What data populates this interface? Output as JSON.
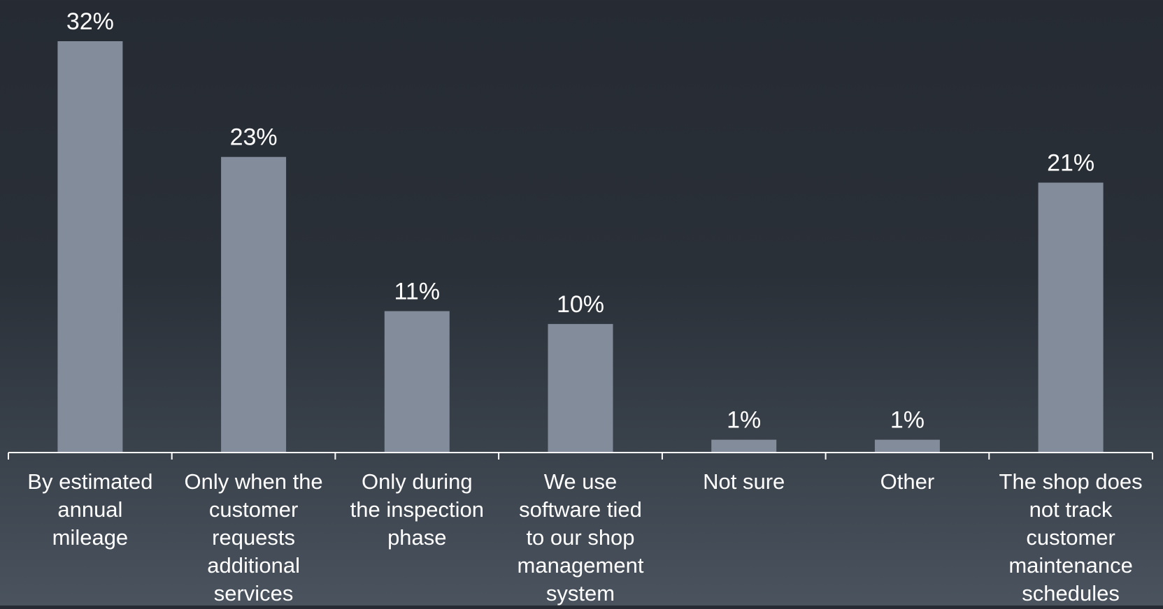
{
  "chart_data": {
    "type": "bar",
    "title": "",
    "xlabel": "",
    "ylabel": "",
    "categories": [
      "By estimated annual mileage",
      "Only when the customer requests additional services",
      "Only during the inspection phase",
      "We use software tied to our shop management system",
      "Not sure",
      "Other",
      "The shop does not track customer maintenance schedules"
    ],
    "category_lines": [
      [
        "By estimated",
        "annual",
        "mileage"
      ],
      [
        "Only when the",
        "customer",
        "requests",
        "additional",
        "services"
      ],
      [
        "Only during",
        "the inspection",
        "phase"
      ],
      [
        "We use",
        "software tied",
        "to our shop",
        "management",
        "system"
      ],
      [
        "Not sure"
      ],
      [
        "Other"
      ],
      [
        "The shop does",
        "not track",
        "customer",
        "maintenance",
        "schedules"
      ]
    ],
    "values": [
      32,
      23,
      11,
      10,
      1,
      1,
      21
    ],
    "value_labels": [
      "32%",
      "23%",
      "11%",
      "10%",
      "1%",
      "1%",
      "21%"
    ],
    "ylim": [
      0,
      32
    ],
    "grid": false,
    "legend": "none",
    "colors": {
      "bar": "#838c9a",
      "axis": "#ffffff",
      "text": "#ffffff"
    }
  }
}
